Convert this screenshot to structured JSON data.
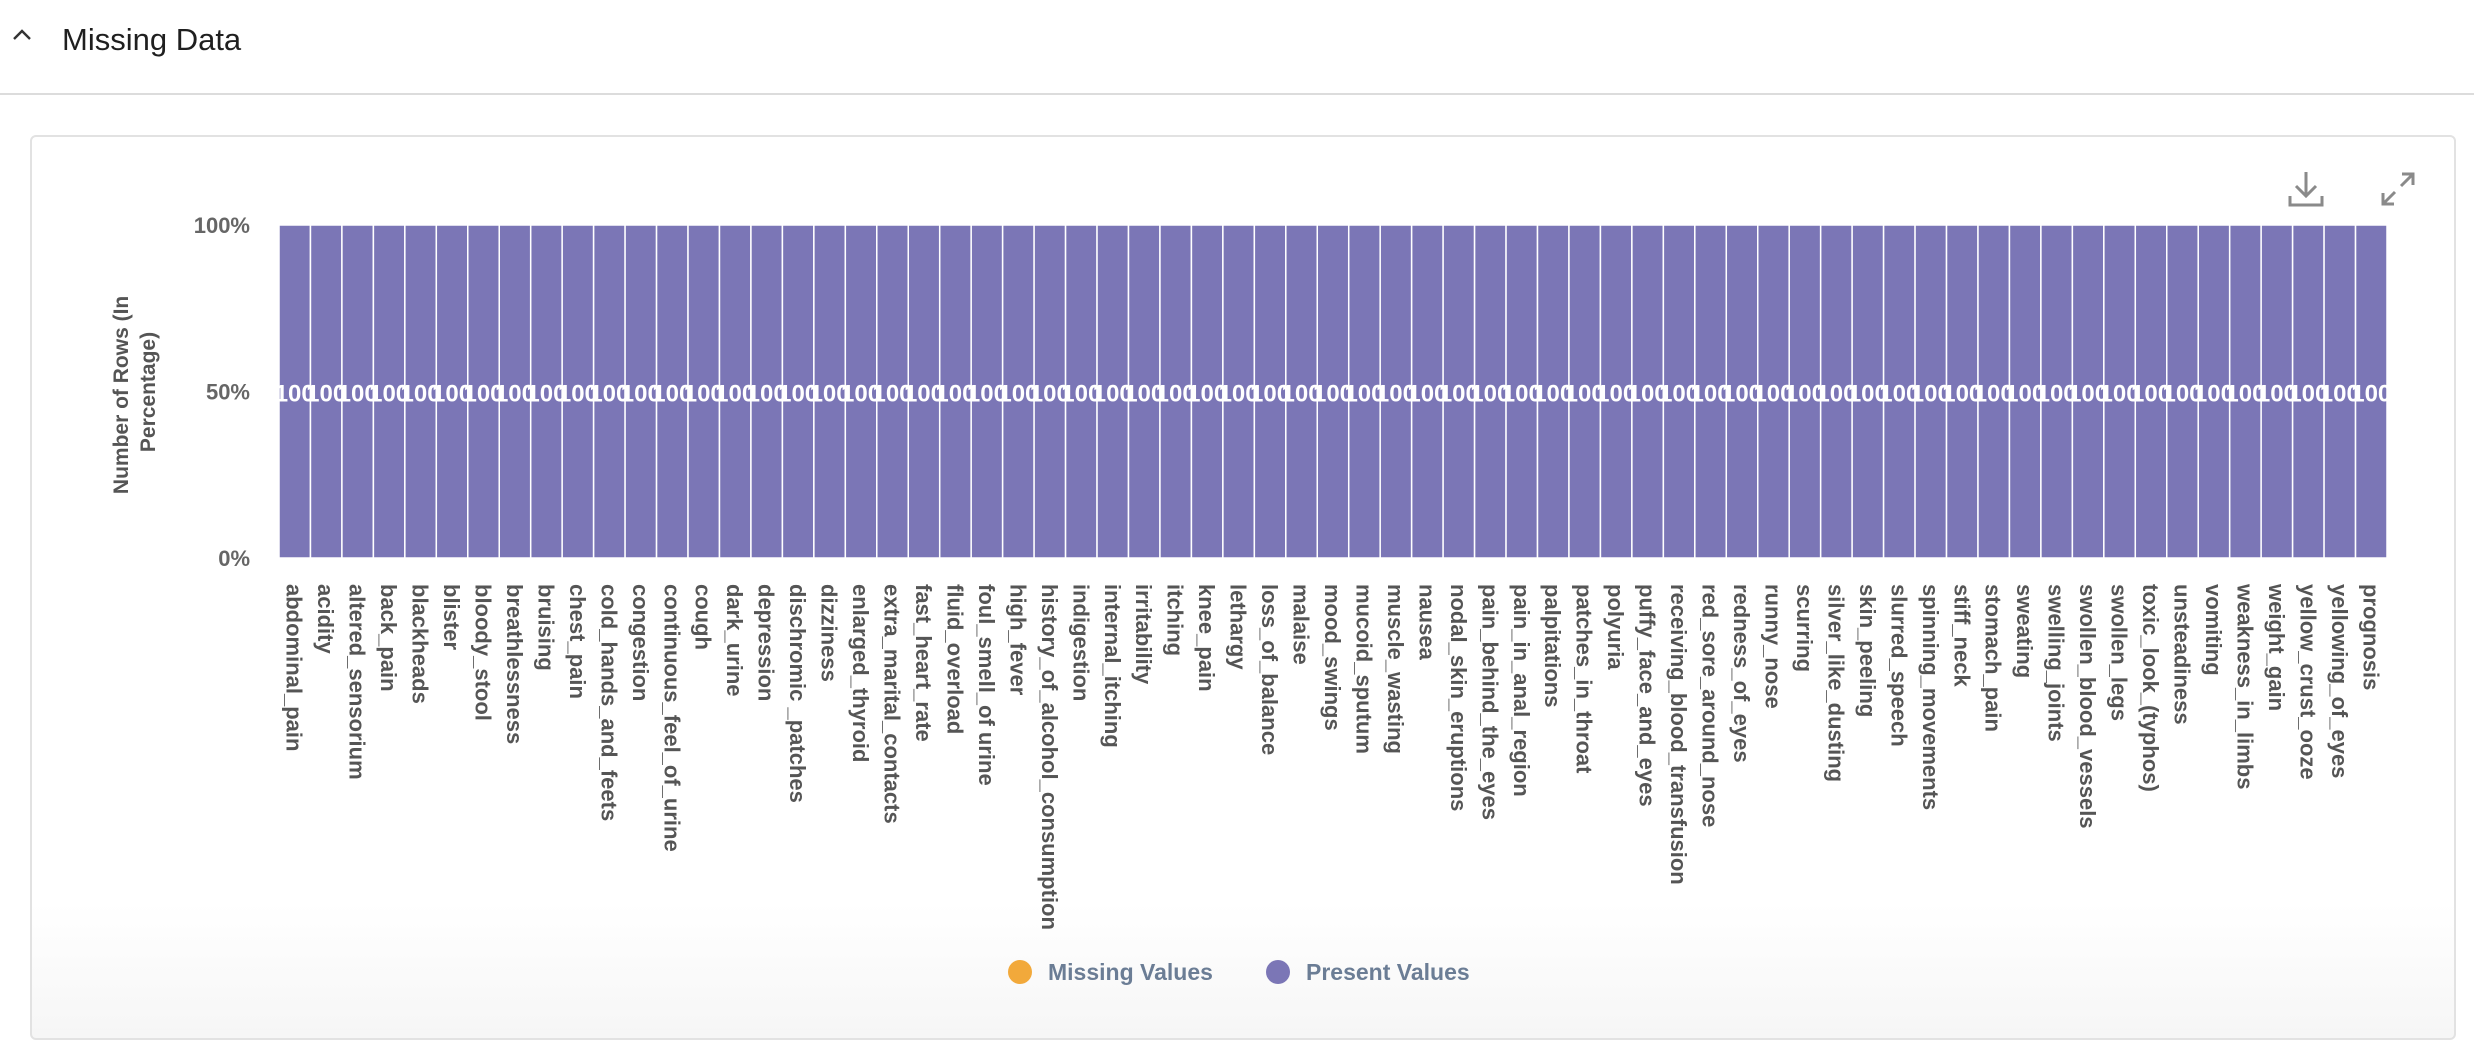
{
  "section": {
    "title": "Missing Data"
  },
  "colors": {
    "missing": "#f2a93b",
    "present": "#7b76b6",
    "bar_border": "#ffffff"
  },
  "icons": {
    "collapse": "chevron-up-icon",
    "download": "download-icon",
    "expand": "expand-icon"
  },
  "chart_data": {
    "type": "bar",
    "stacked": true,
    "ylabel": "Number of Rows (In Percentage)",
    "yticks": [
      "0%",
      "50%",
      "100%"
    ],
    "ylim": [
      0,
      100
    ],
    "legend_position": "bottom",
    "categories": [
      "abdominal_pain",
      "acidity",
      "altered_sensorium",
      "back_pain",
      "blackheads",
      "blister",
      "bloody_stool",
      "breathlessness",
      "bruising",
      "chest_pain",
      "cold_hands_and_feets",
      "congestion",
      "continuous_feel_of_urine",
      "cough",
      "dark_urine",
      "depression",
      "dischromic _patches",
      "dizziness",
      "enlarged_thyroid",
      "extra_marital_contacts",
      "fast_heart_rate",
      "fluid_overload",
      "foul_smell_of urine",
      "high_fever",
      "history_of_alcohol_consumption",
      "indigestion",
      "internal_itching",
      "irritability",
      "itching",
      "knee_pain",
      "lethargy",
      "loss_of_balance",
      "malaise",
      "mood_swings",
      "mucoid_sputum",
      "muscle_wasting",
      "nausea",
      "nodal_skin_eruptions",
      "pain_behind_the_eyes",
      "pain_in_anal_region",
      "palpitations",
      "patches_in_throat",
      "polyuria",
      "puffy_face_and_eyes",
      "receiving_blood_transfusion",
      "red_sore_around_nose",
      "redness_of_eyes",
      "runny_nose",
      "scurring",
      "silver_like_dusting",
      "skin_peeling",
      "slurred_speech",
      "spinning_movements",
      "stiff_neck",
      "stomach_pain",
      "sweating",
      "swelling_joints",
      "swollen_blood_vessels",
      "swollen_legs",
      "toxic_look_(typhos)",
      "unsteadiness",
      "vomiting",
      "weakness_in_limbs",
      "weight_gain",
      "yellow_crust_ooze",
      "yellowing_of_eyes",
      "prognosis"
    ],
    "series": [
      {
        "name": "Missing Values",
        "values": [
          0,
          0,
          0,
          0,
          0,
          0,
          0,
          0,
          0,
          0,
          0,
          0,
          0,
          0,
          0,
          0,
          0,
          0,
          0,
          0,
          0,
          0,
          0,
          0,
          0,
          0,
          0,
          0,
          0,
          0,
          0,
          0,
          0,
          0,
          0,
          0,
          0,
          0,
          0,
          0,
          0,
          0,
          0,
          0,
          0,
          0,
          0,
          0,
          0,
          0,
          0,
          0,
          0,
          0,
          0,
          0,
          0,
          0,
          0,
          0,
          0,
          0,
          0,
          0,
          0,
          0,
          0
        ]
      },
      {
        "name": "Present Values",
        "values": [
          100,
          100,
          100,
          100,
          100,
          100,
          100,
          100,
          100,
          100,
          100,
          100,
          100,
          100,
          100,
          100,
          100,
          100,
          100,
          100,
          100,
          100,
          100,
          100,
          100,
          100,
          100,
          100,
          100,
          100,
          100,
          100,
          100,
          100,
          100,
          100,
          100,
          100,
          100,
          100,
          100,
          100,
          100,
          100,
          100,
          100,
          100,
          100,
          100,
          100,
          100,
          100,
          100,
          100,
          100,
          100,
          100,
          100,
          100,
          100,
          100,
          100,
          100,
          100,
          100,
          100,
          100
        ]
      }
    ],
    "data_labels": [
      "100",
      "100",
      "100",
      "100",
      "100",
      "100",
      "100",
      "100",
      "100",
      "100",
      "100",
      "100",
      "100",
      "100",
      "100",
      "100",
      "100",
      "100",
      "100",
      "100",
      "100",
      "100",
      "100",
      "100",
      "100",
      "100",
      "100",
      "100",
      "100",
      "100",
      "100",
      "100",
      "100",
      "100",
      "100",
      "100",
      "100",
      "100",
      "100",
      "100",
      "100",
      "100",
      "100",
      "100",
      "100",
      "100",
      "100",
      "100",
      "100",
      "100",
      "100",
      "100",
      "100",
      "100",
      "100",
      "100",
      "100",
      "100",
      "100",
      "100",
      "100",
      "100",
      "100",
      "100",
      "100",
      "100",
      "100"
    ]
  },
  "legend": {
    "items": [
      "Missing Values",
      "Present Values"
    ]
  }
}
